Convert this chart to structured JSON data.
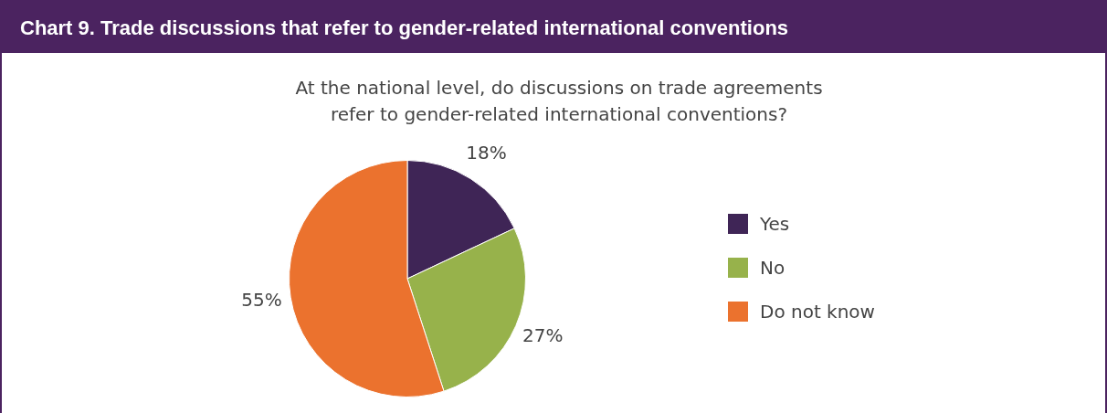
{
  "chart_data": {
    "type": "pie",
    "title": "Chart 9. Trade discussions that refer to gender-related international conventions",
    "subtitle": "At the national level, do discussions on trade agreements refer to gender-related international conventions?",
    "categories": [
      "Yes",
      "No",
      "Do not know"
    ],
    "values": [
      18,
      27,
      55
    ],
    "colors": [
      "#3f2556",
      "#97b24b",
      "#eb722e"
    ],
    "value_labels": [
      "18%",
      "27%",
      "55%"
    ],
    "legend": "right"
  }
}
